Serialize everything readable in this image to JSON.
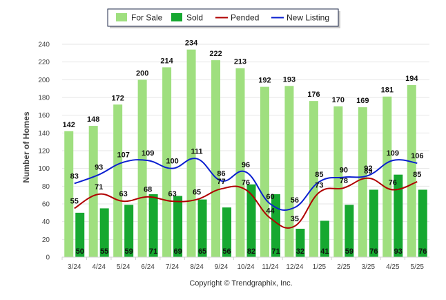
{
  "chart_data": {
    "type": "bar",
    "ylabel": "Number of Homes",
    "ylim": [
      0,
      240
    ],
    "yticks": [
      0,
      20,
      40,
      60,
      80,
      100,
      120,
      140,
      160,
      180,
      200,
      220,
      240
    ],
    "grid": true,
    "legend_position": "top-center",
    "categories": [
      "3/24",
      "4/24",
      "5/24",
      "6/24",
      "7/24",
      "8/24",
      "9/24",
      "10/24",
      "11/24",
      "12/24",
      "1/25",
      "2/25",
      "3/25",
      "4/25",
      "5/25"
    ],
    "series": [
      {
        "name": "For Sale",
        "kind": "bar",
        "color": "#9fdf7f",
        "values": [
          142,
          148,
          172,
          200,
          214,
          234,
          222,
          213,
          192,
          193,
          176,
          170,
          169,
          181,
          194
        ]
      },
      {
        "name": "Sold",
        "kind": "bar",
        "color": "#16a830",
        "values": [
          50,
          55,
          59,
          71,
          69,
          65,
          56,
          82,
          71,
          32,
          41,
          59,
          76,
          93,
          76
        ]
      },
      {
        "name": "Pended",
        "kind": "line",
        "color": "#b00000",
        "values": [
          55,
          71,
          63,
          68,
          63,
          65,
          77,
          76,
          44,
          35,
          73,
          78,
          89,
          76,
          85
        ]
      },
      {
        "name": "New Listing",
        "kind": "line",
        "color": "#0a1fd0",
        "values": [
          83,
          93,
          107,
          109,
          100,
          111,
          86,
          96,
          60,
          56,
          85,
          90,
          92,
          109,
          106
        ]
      }
    ]
  },
  "footer": {
    "copyright": "Copyright © Trendgraphix, Inc."
  }
}
